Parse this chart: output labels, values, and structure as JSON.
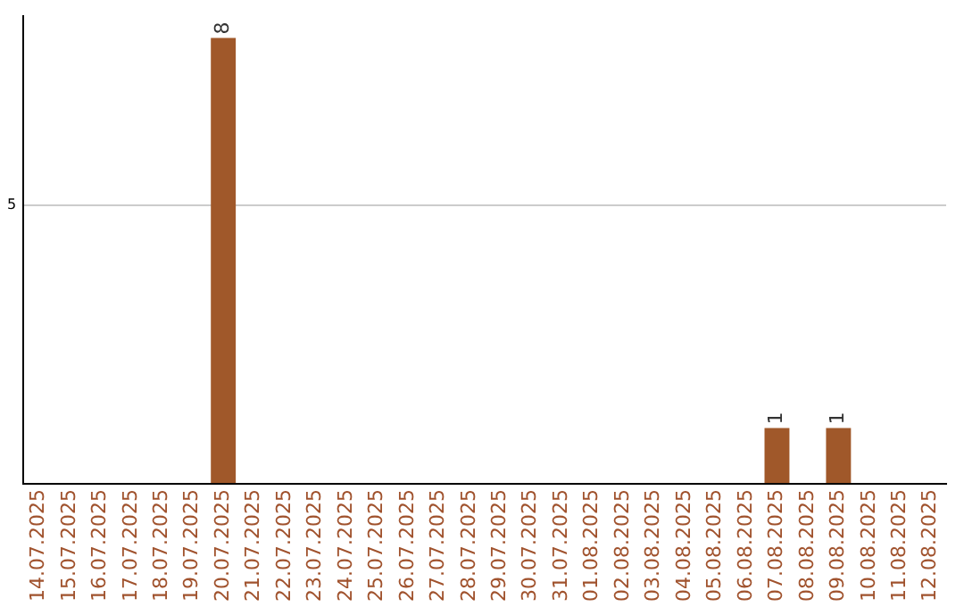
{
  "chart_data": {
    "type": "bar",
    "categories": [
      "14.07.2025",
      "15.07.2025",
      "16.07.2025",
      "17.07.2025",
      "18.07.2025",
      "19.07.2025",
      "20.07.2025",
      "21.07.2025",
      "22.07.2025",
      "23.07.2025",
      "24.07.2025",
      "25.07.2025",
      "26.07.2025",
      "27.07.2025",
      "28.07.2025",
      "29.07.2025",
      "30.07.2025",
      "31.07.2025",
      "01.08.2025",
      "02.08.2025",
      "03.08.2025",
      "04.08.2025",
      "05.08.2025",
      "06.08.2025",
      "07.08.2025",
      "08.08.2025",
      "09.08.2025",
      "10.08.2025",
      "11.08.2025",
      "12.08.2025"
    ],
    "values": [
      0,
      0,
      0,
      0,
      0,
      0,
      8,
      0,
      0,
      0,
      0,
      0,
      0,
      0,
      0,
      0,
      0,
      0,
      0,
      0,
      0,
      0,
      0,
      0,
      1,
      0,
      1,
      0,
      0,
      0
    ],
    "value_labels": [
      null,
      null,
      null,
      null,
      null,
      null,
      "8",
      null,
      null,
      null,
      null,
      null,
      null,
      null,
      null,
      null,
      null,
      null,
      null,
      null,
      null,
      null,
      null,
      null,
      "1",
      null,
      "1",
      null,
      null,
      null
    ],
    "color": "#a0582a",
    "ylim": [
      0,
      8.4
    ],
    "yticks": [
      {
        "value": 0,
        "label": null
      },
      5
    ],
    "grid": "y",
    "legend": false
  }
}
